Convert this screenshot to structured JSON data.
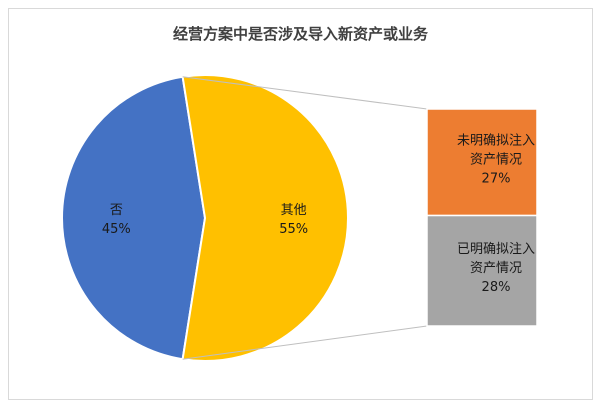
{
  "chart_data": {
    "type": "pie",
    "title": "经营方案中是否涉及导入新资产或业务",
    "main_pie": {
      "slices": [
        {
          "name": "否",
          "value": 45,
          "label": "45%",
          "color": "#4472C4"
        },
        {
          "name": "其他",
          "value": 55,
          "label": "55%",
          "color": "#FFC000"
        }
      ]
    },
    "breakdown_bar": {
      "of_slice": "其他",
      "segments": [
        {
          "name_line1": "未明确拟注入",
          "name_line2": "资产情况",
          "value": 27,
          "label": "27%",
          "color": "#ED7D31"
        },
        {
          "name_line1": "已明确拟注入",
          "name_line2": "资产情况",
          "value": 28,
          "label": "28%",
          "color": "#A5A5A5"
        }
      ]
    },
    "connector_color": "#bfbfbf"
  }
}
